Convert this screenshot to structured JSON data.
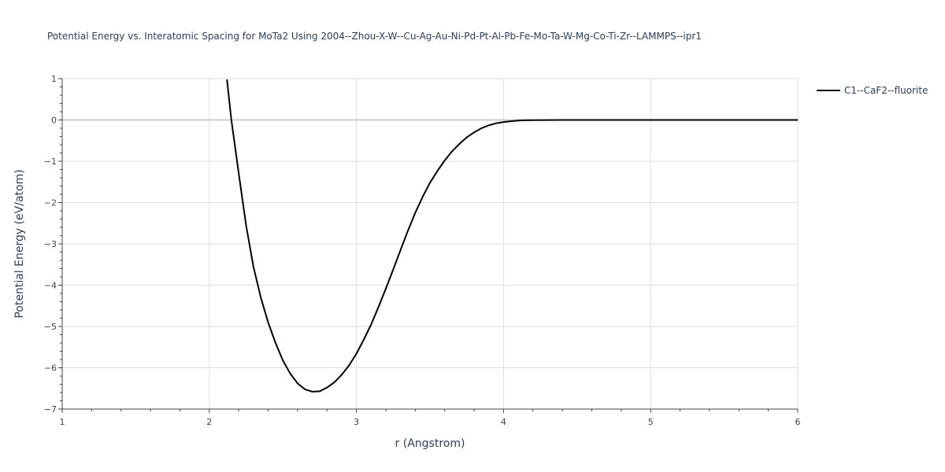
{
  "chart_data": {
    "type": "line",
    "title": "Potential Energy vs. Interatomic Spacing for MoTa2 Using 2004--Zhou-X-W--Cu-Ag-Au-Ni-Pd-Pt-Al-Pb-Fe-Mo-Ta-W-Mg-Co-Ti-Zr--LAMMPS--ipr1",
    "xlabel": "r (Angstrom)",
    "ylabel": "Potential Energy (eV/atom)",
    "xlim": [
      1,
      6
    ],
    "ylim": [
      -7,
      1
    ],
    "x_ticks": [
      "1",
      "2",
      "3",
      "4",
      "5",
      "6"
    ],
    "y_ticks": [
      "1",
      "0",
      "−1",
      "−2",
      "−3",
      "−4",
      "−5",
      "−6",
      "−7"
    ],
    "grid": true,
    "legend_position": "top-right",
    "series": [
      {
        "name": "C1--CaF2--fluorite",
        "color": "#000000",
        "x": [
          2.12,
          2.15,
          2.2,
          2.25,
          2.3,
          2.35,
          2.4,
          2.45,
          2.5,
          2.55,
          2.6,
          2.65,
          2.7,
          2.75,
          2.8,
          2.85,
          2.9,
          2.95,
          3.0,
          3.05,
          3.1,
          3.15,
          3.2,
          3.25,
          3.3,
          3.35,
          3.4,
          3.45,
          3.5,
          3.55,
          3.6,
          3.65,
          3.7,
          3.75,
          3.8,
          3.85,
          3.9,
          3.95,
          4.0,
          4.05,
          4.1,
          4.15,
          4.2,
          4.3,
          4.4,
          4.5,
          4.6,
          4.8,
          5.0,
          5.5,
          6.0
        ],
        "y": [
          0.98,
          0.0,
          -1.3,
          -2.55,
          -3.55,
          -4.3,
          -4.9,
          -5.4,
          -5.82,
          -6.14,
          -6.38,
          -6.52,
          -6.58,
          -6.57,
          -6.48,
          -6.35,
          -6.17,
          -5.94,
          -5.66,
          -5.32,
          -4.95,
          -4.53,
          -4.08,
          -3.62,
          -3.15,
          -2.68,
          -2.25,
          -1.86,
          -1.52,
          -1.24,
          -0.98,
          -0.76,
          -0.58,
          -0.42,
          -0.3,
          -0.2,
          -0.13,
          -0.08,
          -0.05,
          -0.03,
          -0.015,
          -0.008,
          -0.004,
          -0.001,
          0.0,
          0.0,
          0.0,
          0.0,
          0.0,
          0.0,
          0.0
        ]
      }
    ]
  }
}
